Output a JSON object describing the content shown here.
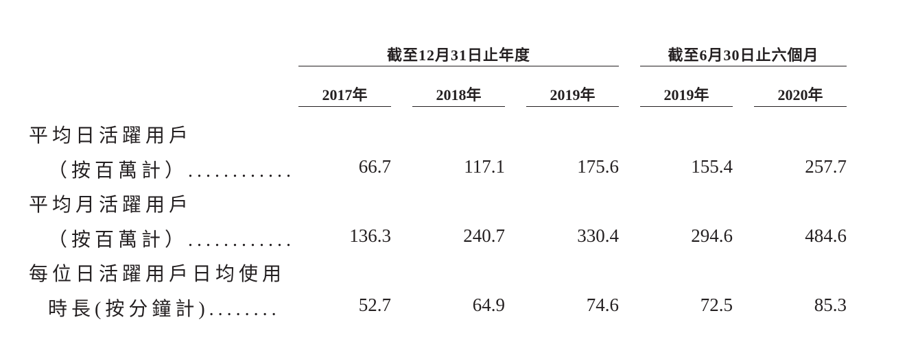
{
  "table": {
    "groups": [
      "截至12月31日止年度",
      "截至6月30日止六個月"
    ],
    "columns": [
      "2017年",
      "2018年",
      "2019年",
      "2019年",
      "2020年"
    ],
    "rows": [
      {
        "label": [
          "平均日活躍用戶",
          "（按百萬計）............"
        ],
        "values": [
          "66.7",
          "117.1",
          "175.6",
          "155.4",
          "257.7"
        ]
      },
      {
        "label": [
          "平均月活躍用戶",
          "（按百萬計）............"
        ],
        "values": [
          "136.3",
          "240.7",
          "330.4",
          "294.6",
          "484.6"
        ]
      },
      {
        "label": [
          "每位日活躍用戶日均使用",
          "時長(按分鐘計)........"
        ],
        "values": [
          "52.7",
          "64.9",
          "74.6",
          "72.5",
          "85.3"
        ]
      }
    ]
  }
}
